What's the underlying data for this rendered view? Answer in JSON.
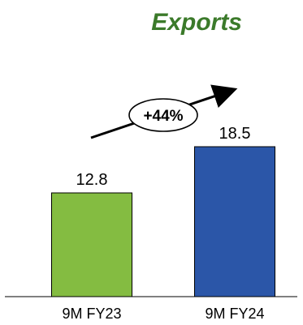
{
  "chart_data": {
    "type": "bar",
    "title": "Exports",
    "categories": [
      "9M FY23",
      "9M FY24"
    ],
    "values": [
      12.8,
      18.5
    ],
    "data_labels": [
      "12.8",
      "18.5"
    ],
    "bar_colors": [
      "#84BC41",
      "#2B56A8"
    ],
    "title_color": "#3B7A2A",
    "ylim": [
      0,
      20
    ],
    "xlabel": "",
    "ylabel": "",
    "grid": false,
    "legend": "none",
    "annotation": {
      "text": "+44%",
      "shape": "oval-with-upward-arrow"
    }
  }
}
